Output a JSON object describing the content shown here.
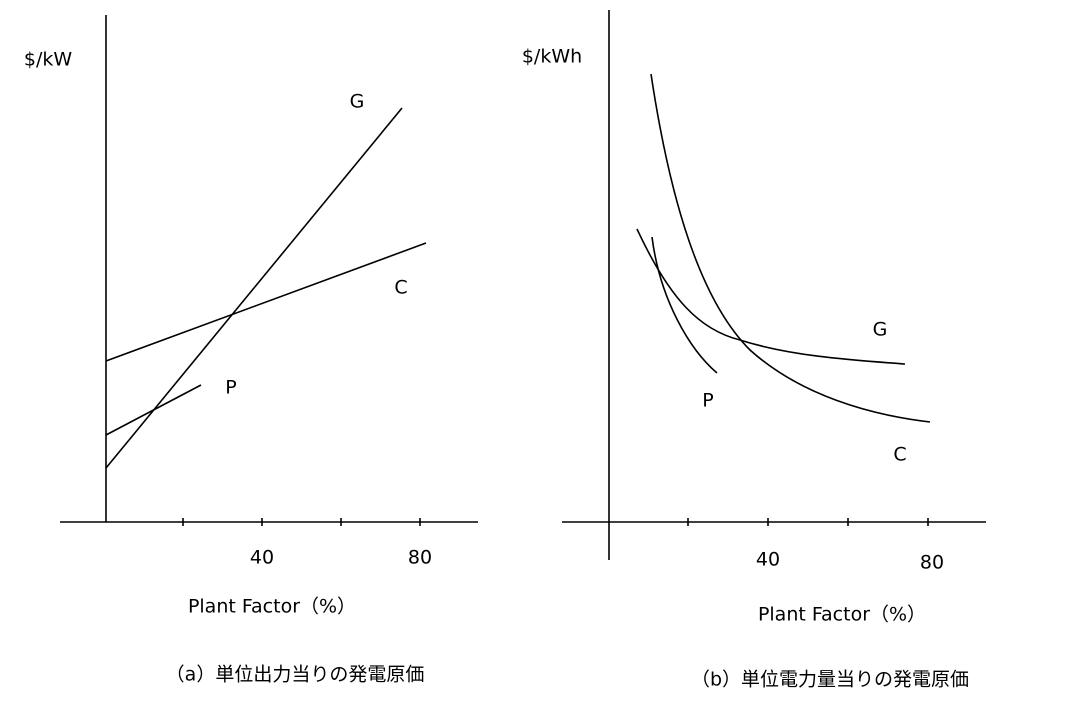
{
  "panels": [
    {
      "y_label": "$/kW",
      "x_label": "Plant Factor（%）",
      "caption": "（a）単位出力当りの発電原価",
      "x_ticks": [
        "40",
        "80"
      ],
      "curve_labels": [
        "G",
        "C",
        "P"
      ]
    },
    {
      "y_label": "$/kWh",
      "x_label": "Plant Factor（%）",
      "caption": "（b）単位電力量当りの発電原価",
      "x_ticks": [
        "40",
        "80"
      ],
      "curve_labels": [
        "G",
        "C",
        "P"
      ]
    }
  ]
}
